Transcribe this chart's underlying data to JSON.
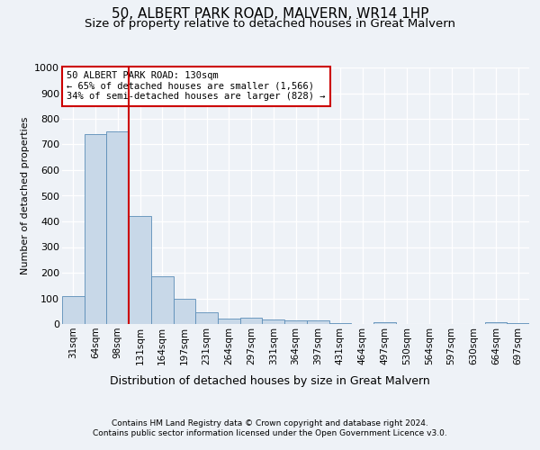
{
  "title1": "50, ALBERT PARK ROAD, MALVERN, WR14 1HP",
  "title2": "Size of property relative to detached houses in Great Malvern",
  "xlabel": "Distribution of detached houses by size in Great Malvern",
  "ylabel": "Number of detached properties",
  "categories": [
    "31sqm",
    "64sqm",
    "98sqm",
    "131sqm",
    "164sqm",
    "197sqm",
    "231sqm",
    "264sqm",
    "297sqm",
    "331sqm",
    "364sqm",
    "397sqm",
    "431sqm",
    "464sqm",
    "497sqm",
    "530sqm",
    "564sqm",
    "597sqm",
    "630sqm",
    "664sqm",
    "697sqm"
  ],
  "values": [
    110,
    740,
    752,
    420,
    187,
    97,
    45,
    22,
    23,
    17,
    15,
    14,
    4,
    0,
    7,
    0,
    0,
    0,
    0,
    6,
    5
  ],
  "bar_color": "#c8d8e8",
  "bar_edge_color": "#5b8db8",
  "vline_pos": 2.5,
  "annotation_text1": "50 ALBERT PARK ROAD: 130sqm",
  "annotation_text2": "← 65% of detached houses are smaller (1,566)",
  "annotation_text3": "34% of semi-detached houses are larger (828) →",
  "annotation_box_color": "#ffffff",
  "annotation_box_edge": "#cc0000",
  "vline_color": "#cc0000",
  "footer1": "Contains HM Land Registry data © Crown copyright and database right 2024.",
  "footer2": "Contains public sector information licensed under the Open Government Licence v3.0.",
  "ylim": [
    0,
    1000
  ],
  "yticks": [
    0,
    100,
    200,
    300,
    400,
    500,
    600,
    700,
    800,
    900,
    1000
  ],
  "bg_color": "#eef2f7",
  "grid_color": "#ffffff",
  "title1_fontsize": 11,
  "title2_fontsize": 9.5,
  "ylabel_fontsize": 8,
  "xlabel_fontsize": 9,
  "tick_fontsize": 7.5,
  "footer_fontsize": 6.5,
  "annot_fontsize": 7.5
}
